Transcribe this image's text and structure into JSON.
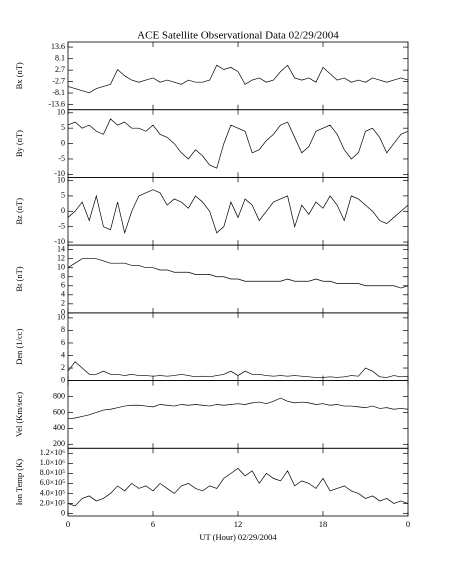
{
  "chart_data": [
    {
      "type": "line",
      "title": "ACE Satellite Observational Data  02/29/2004",
      "ylabel": "Bx (nT)",
      "ylim": [
        -16,
        16
      ],
      "yticks": [
        -13.6,
        -8.1,
        -2.7,
        2.7,
        8.1,
        13.6
      ],
      "values": [
        -5,
        -6,
        -7,
        -8,
        -6,
        -5,
        -4,
        3,
        0,
        -2,
        -3,
        -2,
        -1,
        -3,
        -2,
        -3,
        -4,
        -2,
        -3,
        -3,
        -2,
        5,
        3,
        4,
        2,
        -4,
        -2,
        -1,
        -3,
        -2,
        2,
        5,
        -1,
        -2,
        -1,
        -3,
        4,
        1,
        -2,
        -1,
        -3,
        -2,
        -3,
        -1,
        -2,
        -3,
        -2,
        -1,
        -2
      ]
    },
    {
      "type": "line",
      "ylabel": "By (nT)",
      "ylim": [
        -11,
        11
      ],
      "yticks": [
        -10,
        -5,
        0,
        5,
        10
      ],
      "values": [
        6,
        7,
        5,
        6,
        4,
        3,
        8,
        6,
        7,
        5,
        5,
        4,
        6,
        3,
        2,
        0,
        -3,
        -5,
        -2,
        -4,
        -7,
        -8,
        0,
        6,
        5,
        4,
        -3,
        -2,
        1,
        3,
        6,
        7,
        2,
        -3,
        -1,
        4,
        5,
        6,
        3,
        -2,
        -5,
        -3,
        4,
        5,
        2,
        -3,
        0,
        3,
        4
      ]
    },
    {
      "type": "line",
      "ylabel": "Bz (nT)",
      "ylim": [
        -11,
        11
      ],
      "yticks": [
        -10,
        -5,
        0,
        5,
        10
      ],
      "values": [
        -2,
        0,
        3,
        -3,
        5,
        -5,
        -6,
        3,
        -7,
        0,
        5,
        6,
        7,
        6,
        2,
        4,
        3,
        1,
        5,
        3,
        0,
        -7,
        -5,
        3,
        -2,
        4,
        2,
        -3,
        0,
        3,
        4,
        5,
        -5,
        2,
        -1,
        3,
        1,
        5,
        2,
        -3,
        5,
        4,
        2,
        0,
        -3,
        -4,
        -2,
        0,
        2
      ]
    },
    {
      "type": "line",
      "ylabel": "Bt (nT)",
      "ylim": [
        0,
        15
      ],
      "yticks": [
        0,
        2,
        4,
        6,
        8,
        10,
        12,
        14
      ],
      "values": [
        10,
        11,
        12,
        12,
        12,
        11.5,
        11,
        11,
        11,
        10.5,
        10.5,
        10,
        10,
        9.5,
        9.5,
        9,
        9,
        9,
        8.5,
        8.5,
        8.5,
        8,
        8,
        7.5,
        7.5,
        7,
        7,
        7,
        7,
        7,
        7,
        7.5,
        7,
        7,
        7,
        7.5,
        7,
        7,
        6.5,
        6.5,
        6.5,
        6.5,
        6,
        6,
        6,
        6,
        6,
        5.5,
        6
      ]
    },
    {
      "type": "line",
      "ylabel": "Den (1/cc)",
      "ylim": [
        0,
        10.8
      ],
      "yticks": [
        0,
        2,
        4,
        6,
        8,
        10
      ],
      "values": [
        1.5,
        3,
        2,
        1,
        1,
        1.5,
        1,
        1,
        0.8,
        1,
        0.8,
        0.8,
        0.7,
        0.8,
        0.7,
        0.8,
        1,
        0.8,
        0.6,
        0.7,
        0.6,
        0.8,
        1,
        1.5,
        0.8,
        1.5,
        1,
        1,
        0.8,
        0.7,
        0.8,
        0.7,
        0.8,
        0.7,
        0.6,
        0.5,
        0.5,
        0.6,
        0.5,
        0.6,
        0.8,
        0.7,
        2,
        1.5,
        0.6,
        0.5,
        0.8,
        0.6,
        0.7
      ]
    },
    {
      "type": "line",
      "ylabel": "Vel (Km/sec)",
      "ylim": [
        150,
        1000
      ],
      "yticks": [
        200,
        400,
        600,
        800
      ],
      "values": [
        520,
        530,
        550,
        570,
        600,
        630,
        640,
        660,
        680,
        690,
        690,
        680,
        670,
        700,
        690,
        680,
        700,
        690,
        700,
        690,
        680,
        700,
        690,
        700,
        710,
        700,
        720,
        730,
        710,
        740,
        780,
        740,
        720,
        730,
        720,
        700,
        710,
        690,
        700,
        680,
        680,
        670,
        660,
        680,
        650,
        660,
        640,
        650,
        640
      ]
    },
    {
      "type": "line",
      "ylabel": "Ion Temp (K)",
      "ylim": [
        -50000,
        1300000
      ],
      "yticks": [
        0,
        {
          "value": 200000,
          "label": "2.0×10⁵"
        },
        {
          "value": 400000,
          "label": "4.0×10⁵"
        },
        {
          "value": 600000,
          "label": "6.0×10⁵"
        },
        {
          "value": 800000,
          "label": "8.0×10⁵"
        },
        {
          "value": 1000000,
          "label": "1.0×10⁶"
        },
        {
          "value": 1200000,
          "label": "1.2×10⁶"
        }
      ],
      "values": [
        200000,
        150000,
        300000,
        350000,
        250000,
        300000,
        400000,
        550000,
        450000,
        600000,
        500000,
        550000,
        450000,
        600000,
        500000,
        400000,
        550000,
        600000,
        500000,
        450000,
        550000,
        500000,
        700000,
        800000,
        900000,
        750000,
        850000,
        600000,
        800000,
        700000,
        650000,
        850000,
        550000,
        650000,
        600000,
        500000,
        700000,
        450000,
        500000,
        550000,
        450000,
        400000,
        300000,
        350000,
        250000,
        300000,
        200000,
        250000,
        200000
      ],
      "xlabel": "UT (Hour)  02/29/2004",
      "xlim": [
        0,
        24
      ],
      "xticks": [
        0,
        6,
        12,
        18,
        {
          "value": 24,
          "label": "0"
        }
      ],
      "x": [
        0,
        0.5,
        1,
        1.5,
        2,
        2.5,
        3,
        3.5,
        4,
        4.5,
        5,
        5.5,
        6,
        6.5,
        7,
        7.5,
        8,
        8.5,
        9,
        9.5,
        10,
        10.5,
        11,
        11.5,
        12,
        12.5,
        13,
        13.5,
        14,
        14.5,
        15,
        15.5,
        16,
        16.5,
        17,
        17.5,
        18,
        18.5,
        19,
        19.5,
        20,
        20.5,
        21,
        21.5,
        22,
        22.5,
        23,
        23.5,
        24
      ]
    }
  ]
}
